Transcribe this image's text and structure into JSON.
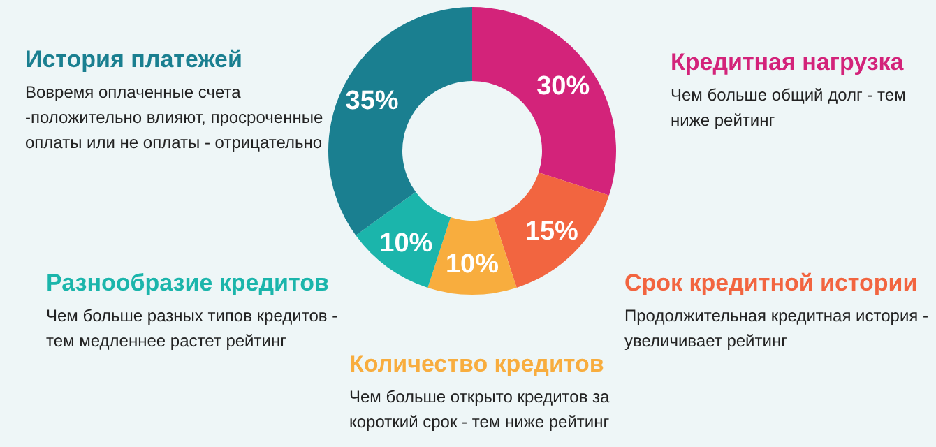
{
  "chart_data": {
    "type": "donut",
    "categories": [
      "Кредитная нагрузка",
      "Срок кредитной истории",
      "Количество кредитов",
      "Разнообразие кредитов",
      "История платежей"
    ],
    "values": [
      30,
      15,
      10,
      10,
      35
    ],
    "value_labels": [
      "30%",
      "15%",
      "10%",
      "10%",
      "35%"
    ],
    "colors": [
      "#d3237a",
      "#f26540",
      "#f8ad3e",
      "#1bb5ab",
      "#1a7f90"
    ],
    "annotations": [
      "Чем больше общий долг - тем ниже рейтинг",
      "Продолжительная кредитная история - увеличивает рейтинг",
      "Чем больше открыто кредитов за короткий срок - тем ниже рейтинг",
      "Чем больше разных типов кредитов - тем медленнее растет рейтинг",
      "Вовремя оплаченные счета -положительно влияют, просроченные оплаты или не оплаты - отрицательно"
    ]
  }
}
